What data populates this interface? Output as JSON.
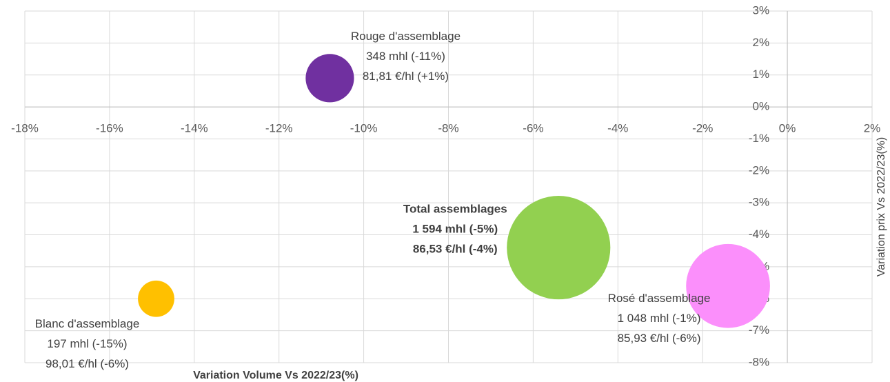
{
  "chart_data": {
    "type": "bubble",
    "xlabel": "Variation Volume Vs 2022/23(%)",
    "ylabel": "Variation prix Vs 2022/23(%)",
    "xlim": [
      -18,
      2
    ],
    "ylim": [
      -8,
      3
    ],
    "xticks": [
      {
        "value": -18,
        "label": "-18%"
      },
      {
        "value": -16,
        "label": "-16%"
      },
      {
        "value": -14,
        "label": "-14%"
      },
      {
        "value": -12,
        "label": "-12%"
      },
      {
        "value": -10,
        "label": "-10%"
      },
      {
        "value": -8,
        "label": "-8%"
      },
      {
        "value": -6,
        "label": "-6%"
      },
      {
        "value": -4,
        "label": "-4%"
      },
      {
        "value": -2,
        "label": "-2%"
      },
      {
        "value": 0,
        "label": "0%"
      },
      {
        "value": 2,
        "label": "2%"
      }
    ],
    "yticks": [
      {
        "value": 3,
        "label": "3%"
      },
      {
        "value": 2,
        "label": "2%"
      },
      {
        "value": 1,
        "label": "1%"
      },
      {
        "value": 0,
        "label": "0%"
      },
      {
        "value": -1,
        "label": "-1%"
      },
      {
        "value": -2,
        "label": "-2%"
      },
      {
        "value": -3,
        "label": "-3%"
      },
      {
        "value": -4,
        "label": "-4%"
      },
      {
        "value": -5,
        "label": "-5%"
      },
      {
        "value": -6,
        "label": "-6%"
      },
      {
        "value": -7,
        "label": "-7%"
      },
      {
        "value": -8,
        "label": "-8%"
      }
    ],
    "grid": true,
    "points": [
      {
        "name": "Rouge d'assemblage",
        "x": -10.8,
        "y": 0.9,
        "size": 348,
        "color": "#7030a0",
        "label_lines": [
          "348 mhl (-11%)",
          "81,81 €/hl (+1%)"
        ]
      },
      {
        "name": "Blanc d'assemblage",
        "x": -14.9,
        "y": -6,
        "size": 197,
        "color": "#ffc000",
        "label_lines": [
          "197 mhl (-15%)",
          "98,01 €/hl (-6%)"
        ]
      },
      {
        "name": "Total assemblages",
        "x": -5.4,
        "y": -4.4,
        "size": 1594,
        "color": "#92d050",
        "bold": true,
        "label_lines": [
          "1 594 mhl (-5%)",
          "86,53 €/hl (-4%)"
        ]
      },
      {
        "name": "Rosé d'assemblage",
        "x": -1.4,
        "y": -5.6,
        "size": 1048,
        "color": "#fb8ffb",
        "label_lines": [
          "1 048 mhl (-1%)",
          "85,93 €/hl (-6%)"
        ]
      }
    ]
  }
}
